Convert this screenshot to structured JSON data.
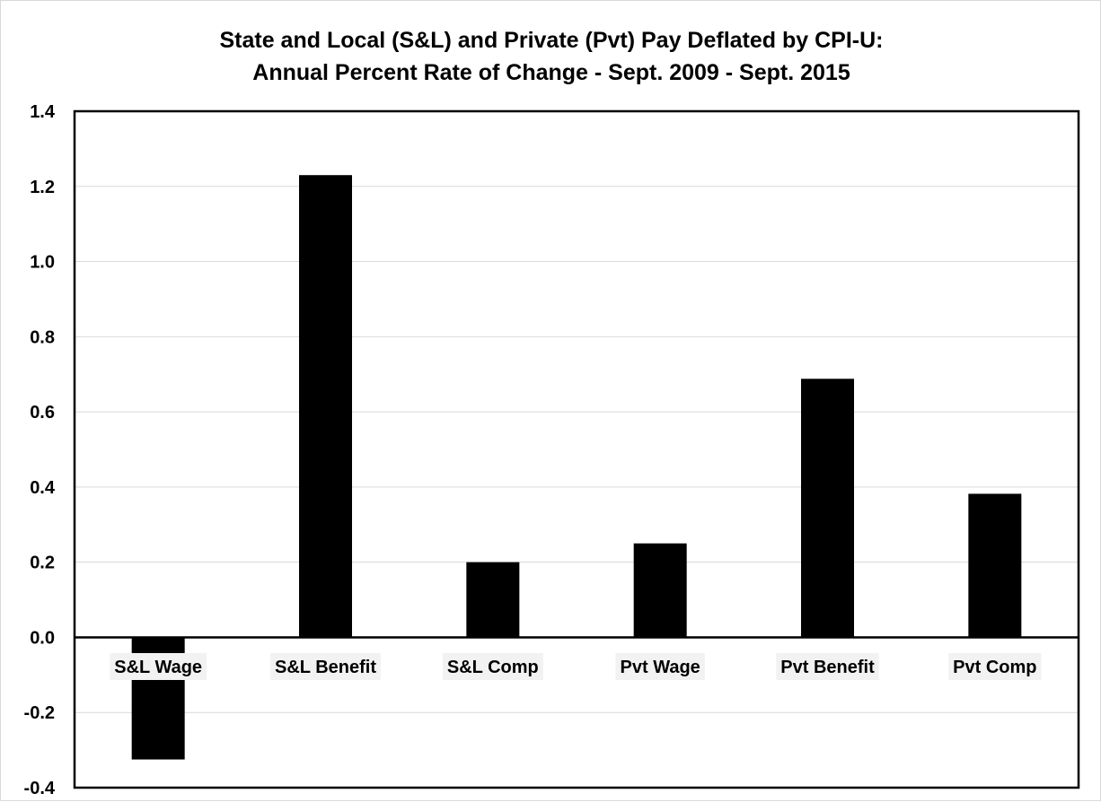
{
  "chart_data": {
    "type": "bar",
    "title": "State and Local (S&L) and Private (Pvt) Pay Deflated by CPI-U:",
    "subtitle": "Annual Percent Rate of Change - Sept. 2009 - Sept. 2015",
    "xlabel": "",
    "ylabel": "",
    "categories": [
      "S&L Wage",
      "S&L Benefit",
      "S&L Comp",
      "Pvt Wage",
      "Pvt Benefit",
      "Pvt Comp"
    ],
    "values": [
      -0.325,
      1.23,
      0.2,
      0.25,
      0.688,
      0.382
    ],
    "ylim": [
      -0.4,
      1.4
    ],
    "yticks": [
      "1.4",
      "1.2",
      "1.0",
      "0.8",
      "0.6",
      "0.4",
      "0.2",
      "0.0",
      "-0.2",
      "-0.4"
    ],
    "grid": true,
    "legend": "none",
    "colors": {
      "bar": "#000000",
      "grid": "#d9d9d9",
      "axis": "#000000",
      "label_bg": "#f2f2f2"
    }
  }
}
